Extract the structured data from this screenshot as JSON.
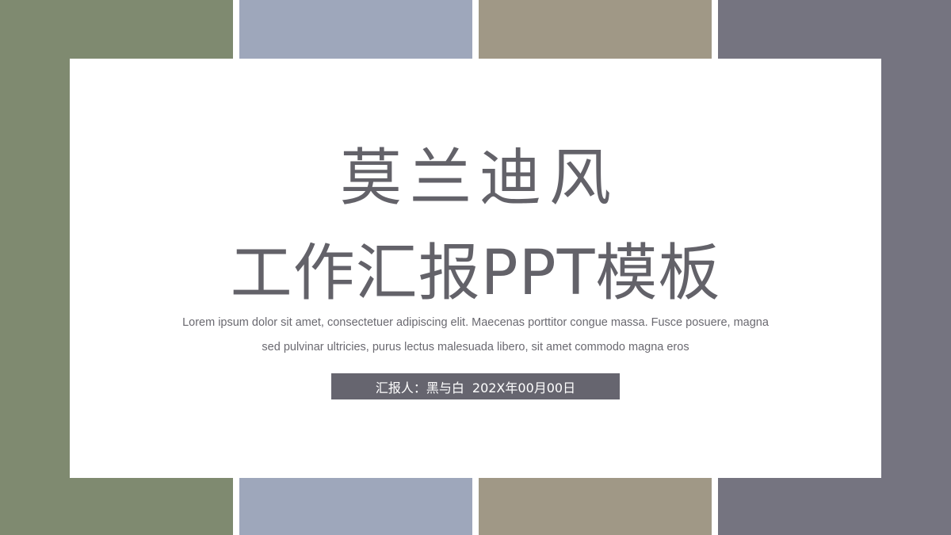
{
  "colors": {
    "green": "#7f8a70",
    "blue": "#9ea7bb",
    "tan": "#a09886",
    "slate": "#757480",
    "panel": "#ffffff",
    "title_text": "#636269",
    "desc_text": "#6a6970",
    "bar_bg": "#66656f",
    "bar_text": "#ffffff"
  },
  "slide": {
    "title_line1": "莫兰迪风",
    "title_line2": "工作汇报PPT模板",
    "description_line1": "Lorem ipsum dolor sit amet, consectetuer adipiscing elit. Maecenas porttitor congue massa. Fusce posuere, magna",
    "description_line2": "sed pulvinar ultricies, purus lectus malesuada libero, sit amet commodo magna eros",
    "reporter_label": "汇报人：黑与白",
    "date": "202X年00月00日"
  }
}
